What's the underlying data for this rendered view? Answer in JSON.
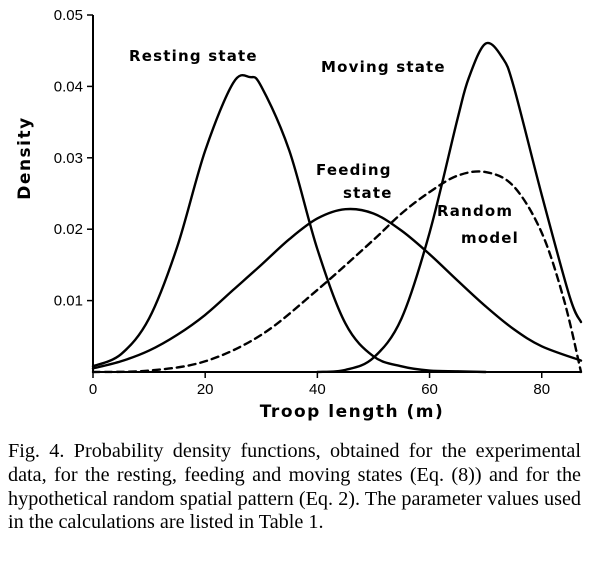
{
  "chart_data": {
    "type": "line",
    "xlabel": "Troop length (m)",
    "ylabel": "Density",
    "xlim": [
      0,
      87
    ],
    "ylim": [
      0,
      0.05
    ],
    "xticks": [
      "0",
      "20",
      "40",
      "60",
      "80"
    ],
    "yticks": [
      "0.01",
      "0.02",
      "0.03",
      "0.04",
      "0.05"
    ],
    "grid": false,
    "series": [
      {
        "name": "Resting state",
        "style": "solid",
        "x": [
          0,
          5,
          10,
          15,
          20,
          25,
          28,
          30,
          35,
          40,
          45,
          50,
          55,
          60,
          65,
          70
        ],
        "y": [
          0.0008,
          0.0025,
          0.0075,
          0.0175,
          0.031,
          0.0405,
          0.0413,
          0.04,
          0.031,
          0.0172,
          0.0068,
          0.0022,
          0.0008,
          0.0002,
          0.0001,
          0.0
        ]
      },
      {
        "name": "Feeding state",
        "style": "solid",
        "x": [
          0,
          5,
          10,
          15,
          20,
          25,
          30,
          35,
          40,
          45,
          50,
          55,
          60,
          65,
          70,
          75,
          80,
          87
        ],
        "y": [
          0.0005,
          0.0015,
          0.003,
          0.0052,
          0.008,
          0.0115,
          0.015,
          0.0186,
          0.0215,
          0.0228,
          0.0222,
          0.0198,
          0.0165,
          0.0128,
          0.0092,
          0.006,
          0.0036,
          0.0016
        ]
      },
      {
        "name": "Moving state",
        "style": "solid",
        "x": [
          40,
          45,
          50,
          55,
          60,
          65,
          67,
          70,
          73,
          75,
          80,
          85,
          87
        ],
        "y": [
          0.0,
          0.0003,
          0.002,
          0.0075,
          0.0195,
          0.0355,
          0.0412,
          0.046,
          0.044,
          0.04,
          0.0248,
          0.0105,
          0.007
        ]
      },
      {
        "name": "Random model",
        "style": "dashed",
        "x": [
          0,
          10,
          20,
          30,
          40,
          50,
          55,
          60,
          65,
          70,
          75,
          80,
          84,
          87
        ],
        "y": [
          0.0,
          0.0002,
          0.0015,
          0.0052,
          0.0115,
          0.0185,
          0.0222,
          0.0252,
          0.0275,
          0.028,
          0.026,
          0.0195,
          0.01,
          0.0
        ]
      }
    ],
    "annotations": {
      "resting": "Resting state",
      "moving": "Moving state",
      "feeding_1": "Feeding",
      "feeding_2": "state",
      "random_1": "Random",
      "random_2": "model"
    }
  },
  "caption": "Fig. 4. Probability density functions, obtained for the experimental data, for the resting, feeding and moving states (Eq. (8)) and for the hypothetical random spatial pattern (Eq. 2). The parameter values used in the calculations are listed in Table 1."
}
